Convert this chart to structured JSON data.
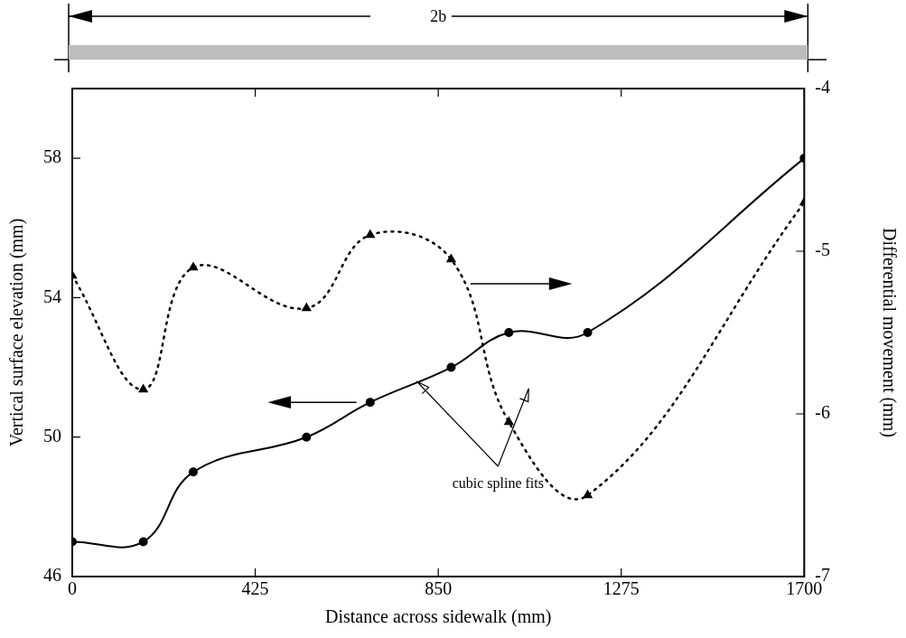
{
  "chart_data": {
    "type": "line",
    "xlabel": "Distance across sidewalk (mm)",
    "ylabel": "Vertical surface elevation (mm)",
    "y2label": "Differential movement (mm)",
    "x": [
      0,
      165,
      281,
      544,
      692,
      880,
      1014,
      1197,
      1700
    ],
    "series": [
      {
        "color": "#000000",
        "marker": "circle",
        "line_style": "solid",
        "values": [
          47,
          47,
          49,
          50,
          51,
          52,
          53,
          53,
          58
        ]
      },
      {
        "axis": "y2",
        "color": "#000000",
        "marker": "triangle",
        "line_style": "dotted",
        "values": [
          -5.15,
          -5.85,
          -5.1,
          -5.35,
          -4.9,
          -5.05,
          -6.05,
          -6.5,
          -4.7
        ]
      }
    ],
    "xlim": [
      0,
      1700
    ],
    "xticks": [
      0,
      425,
      850,
      1275,
      1700
    ],
    "ylim": [
      46,
      60
    ],
    "yticks": [
      46,
      50,
      54,
      58
    ],
    "y2lim": [
      -7,
      -4
    ],
    "y2ticks": [
      -7,
      -6,
      -5,
      -4
    ],
    "grid": false,
    "legend": false,
    "annotations": [
      {
        "text": "cubic spline fits",
        "x": 800,
        "y": 51.6
      },
      "2b"
    ]
  }
}
